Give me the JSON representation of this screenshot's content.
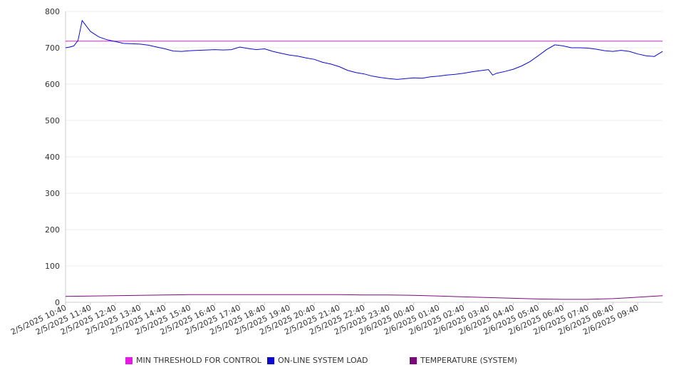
{
  "chart_data": {
    "type": "line",
    "ylim": [
      0,
      800
    ],
    "yticks": [
      0,
      100,
      200,
      300,
      400,
      500,
      600,
      700,
      800
    ],
    "grid": true,
    "legend_position": "bottom",
    "x_tick_labels": [
      "2/5/2025 10:40",
      "2/5/2025 11:40",
      "2/5/2025 12:40",
      "2/5/2025 13:40",
      "2/5/2025 14:40",
      "2/5/2025 15:40",
      "2/5/2025 16:40",
      "2/5/2025 17:40",
      "2/5/2025 18:40",
      "2/5/2025 19:40",
      "2/5/2025 20:40",
      "2/5/2025 21:40",
      "2/5/2025 22:40",
      "2/5/2025 23:40",
      "2/6/2025 00:40",
      "2/6/2025 01:40",
      "2/6/2025 02:40",
      "2/6/2025 03:40",
      "2/6/2025 04:40",
      "2/6/2025 05:40",
      "2/6/2025 06:40",
      "2/6/2025 07:40",
      "2/6/2025 08:40",
      "2/6/2025 09:40"
    ],
    "series": [
      {
        "name": "MIN THRESHOLD FOR CONTROL",
        "color": "#e619e6",
        "x": [
          "2/5/2025 10:40",
          "2/6/2025 10:40"
        ],
        "values": [
          718,
          718
        ]
      },
      {
        "name": "ON-LINE SYSTEM LOAD",
        "color": "#0a0ad2",
        "x": [
          "2/5/2025 10:40",
          "2/5/2025 10:50",
          "2/5/2025 11:00",
          "2/5/2025 11:10",
          "2/5/2025 11:20",
          "2/5/2025 11:30",
          "2/5/2025 11:40",
          "2/5/2025 12:00",
          "2/5/2025 12:20",
          "2/5/2025 12:40",
          "2/5/2025 13:00",
          "2/5/2025 13:20",
          "2/5/2025 13:40",
          "2/5/2025 14:00",
          "2/5/2025 14:20",
          "2/5/2025 14:40",
          "2/5/2025 15:00",
          "2/5/2025 15:20",
          "2/5/2025 15:40",
          "2/5/2025 16:00",
          "2/5/2025 16:20",
          "2/5/2025 16:40",
          "2/5/2025 17:00",
          "2/5/2025 17:20",
          "2/5/2025 17:40",
          "2/5/2025 18:00",
          "2/5/2025 18:20",
          "2/5/2025 18:40",
          "2/5/2025 19:00",
          "2/5/2025 19:20",
          "2/5/2025 19:40",
          "2/5/2025 20:00",
          "2/5/2025 20:20",
          "2/5/2025 20:40",
          "2/5/2025 21:00",
          "2/5/2025 21:20",
          "2/5/2025 21:40",
          "2/5/2025 22:00",
          "2/5/2025 22:20",
          "2/5/2025 22:40",
          "2/5/2025 23:00",
          "2/5/2025 23:20",
          "2/5/2025 23:40",
          "2/6/2025 00:00",
          "2/6/2025 00:20",
          "2/6/2025 00:40",
          "2/6/2025 01:00",
          "2/6/2025 01:20",
          "2/6/2025 01:40",
          "2/6/2025 02:00",
          "2/6/2025 02:20",
          "2/6/2025 02:40",
          "2/6/2025 03:00",
          "2/6/2025 03:20",
          "2/6/2025 03:40",
          "2/6/2025 03:50",
          "2/6/2025 04:00",
          "2/6/2025 04:20",
          "2/6/2025 04:40",
          "2/6/2025 05:00",
          "2/6/2025 05:20",
          "2/6/2025 05:40",
          "2/6/2025 06:00",
          "2/6/2025 06:20",
          "2/6/2025 06:40",
          "2/6/2025 07:00",
          "2/6/2025 07:20",
          "2/6/2025 07:40",
          "2/6/2025 08:00",
          "2/6/2025 08:20",
          "2/6/2025 08:40",
          "2/6/2025 09:00",
          "2/6/2025 09:20",
          "2/6/2025 09:40",
          "2/6/2025 10:00",
          "2/6/2025 10:20",
          "2/6/2025 10:40"
        ],
        "values": [
          700,
          702,
          705,
          720,
          775,
          760,
          745,
          730,
          722,
          717,
          712,
          711,
          710,
          707,
          702,
          697,
          691,
          690,
          692,
          693,
          694,
          695,
          694,
          695,
          702,
          698,
          695,
          697,
          690,
          685,
          680,
          677,
          672,
          668,
          660,
          655,
          648,
          638,
          632,
          628,
          622,
          618,
          615,
          613,
          615,
          617,
          616,
          620,
          622,
          625,
          627,
          630,
          634,
          637,
          640,
          625,
          630,
          635,
          641,
          650,
          662,
          678,
          695,
          708,
          705,
          700,
          700,
          699,
          696,
          692,
          690,
          693,
          690,
          683,
          678,
          676,
          690
        ]
      },
      {
        "name": "TEMPERATURE (SYSTEM)",
        "color": "#7a0a7a",
        "x": [
          "2/5/2025 10:40",
          "2/5/2025 11:40",
          "2/5/2025 12:40",
          "2/5/2025 13:40",
          "2/5/2025 14:40",
          "2/5/2025 15:40",
          "2/5/2025 16:40",
          "2/5/2025 17:40",
          "2/5/2025 18:40",
          "2/5/2025 19:40",
          "2/5/2025 20:40",
          "2/5/2025 21:40",
          "2/5/2025 22:40",
          "2/5/2025 23:40",
          "2/6/2025 00:40",
          "2/6/2025 01:40",
          "2/6/2025 02:40",
          "2/6/2025 03:40",
          "2/6/2025 04:40",
          "2/6/2025 05:40",
          "2/6/2025 06:40",
          "2/6/2025 07:40",
          "2/6/2025 08:40",
          "2/6/2025 09:40",
          "2/6/2025 10:40"
        ],
        "values": [
          16,
          17,
          18,
          19,
          20,
          21,
          21,
          21,
          21,
          21,
          21,
          21,
          20,
          20,
          19,
          17,
          15,
          13,
          11,
          9,
          8,
          8,
          10,
          14,
          18
        ]
      }
    ]
  }
}
